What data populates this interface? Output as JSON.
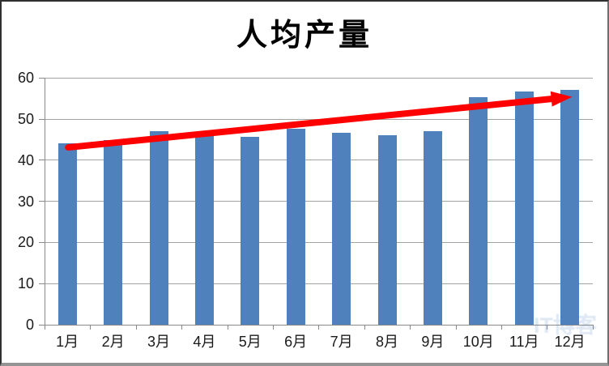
{
  "chart_data": {
    "type": "bar",
    "title": "人均产量",
    "categories": [
      "1月",
      "2月",
      "3月",
      "4月",
      "5月",
      "6月",
      "7月",
      "8月",
      "9月",
      "10月",
      "11月",
      "12月"
    ],
    "values": [
      44.0,
      44.8,
      47.0,
      46.0,
      45.7,
      47.6,
      46.6,
      46.1,
      47.0,
      55.4,
      56.7,
      57.1
    ],
    "ylim": [
      0,
      60
    ],
    "yticks": [
      0,
      10,
      20,
      30,
      40,
      50,
      60
    ],
    "xlabel": "",
    "ylabel": "",
    "grid": true,
    "legend": "none",
    "bar_color": "#4F81BD",
    "axis_color": "#898989",
    "gridline_color": "#A3A3A3",
    "annotation": {
      "type": "arrow",
      "color": "#FF0000",
      "thickness": 8,
      "from_category": "1月",
      "from_value": 43.1,
      "to_category": "12月",
      "to_value": 55.4,
      "description": "red upward trend arrow from January to December"
    }
  },
  "watermark": {
    "text": "IT博客"
  }
}
